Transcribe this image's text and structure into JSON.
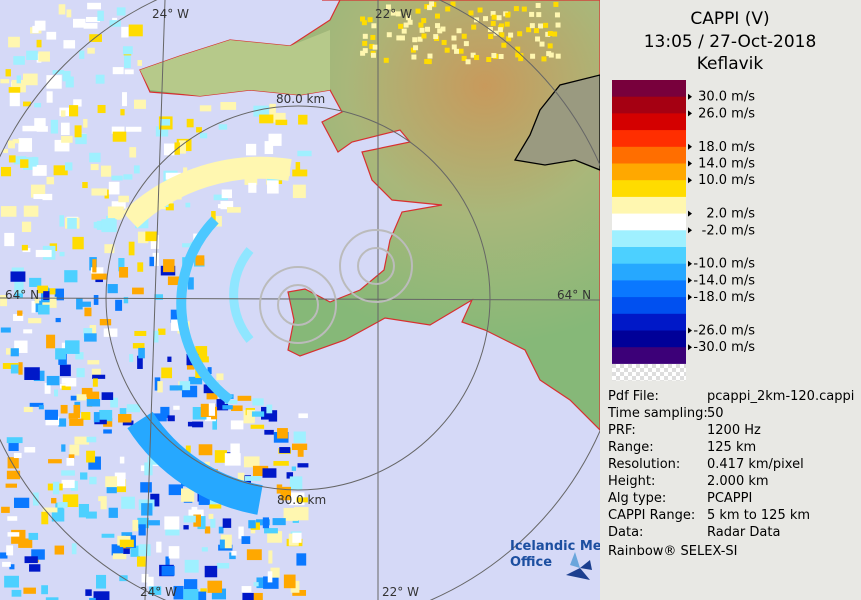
{
  "header": {
    "title": "CAPPI (V)",
    "datetime": "13:05 / 27-Oct-2018",
    "site": "Keflavik"
  },
  "legend": {
    "colors": [
      "#78003c",
      "#a50012",
      "#d40000",
      "#ff2e00",
      "#ff6e00",
      "#ffa800",
      "#ffdc00",
      "#fff7b0",
      "#ffffff",
      "#9ff0ff",
      "#4cd0ff",
      "#26a8ff",
      "#0a78ff",
      "#0050f0",
      "#0018c8",
      "#000098",
      "#3c0078"
    ],
    "labels": [
      "30.0 m/s",
      "26.0 m/s",
      null,
      "18.0 m/s",
      "14.0 m/s",
      "10.0 m/s",
      null,
      "2.0 m/s",
      "-2.0 m/s",
      null,
      "-10.0 m/s",
      "-14.0 m/s",
      "-18.0 m/s",
      null,
      "-26.0 m/s",
      "-30.0 m/s"
    ]
  },
  "info": [
    [
      "Pdf File:",
      "pcappi_2km-120.cappi"
    ],
    [
      "Time sampling:",
      "50"
    ],
    [
      "PRF:",
      "1200 Hz"
    ],
    [
      "Range:",
      "125 km"
    ],
    [
      "Resolution:",
      "0.417 km/pixel"
    ],
    [
      "Height:",
      "2.000 km"
    ],
    [
      "Alg type:",
      "PCAPPI"
    ],
    [
      "CAPPI Range:",
      "5 km to 125 km"
    ],
    [
      "Data:",
      "Radar Data"
    ]
  ],
  "footer": "Rainbow® SELEX-SI",
  "map": {
    "lon_left_top": "24° W",
    "lon_right_top": "22° W",
    "lon_left_bottom": "24° W",
    "lon_right_bottom": "22° W",
    "lat_left": "64° N",
    "lat_right": "64° N",
    "range_top": "80.0 km",
    "range_bottom": "80.0 km"
  },
  "logo": {
    "line1": "Icelandic Met",
    "line2": "Office"
  }
}
